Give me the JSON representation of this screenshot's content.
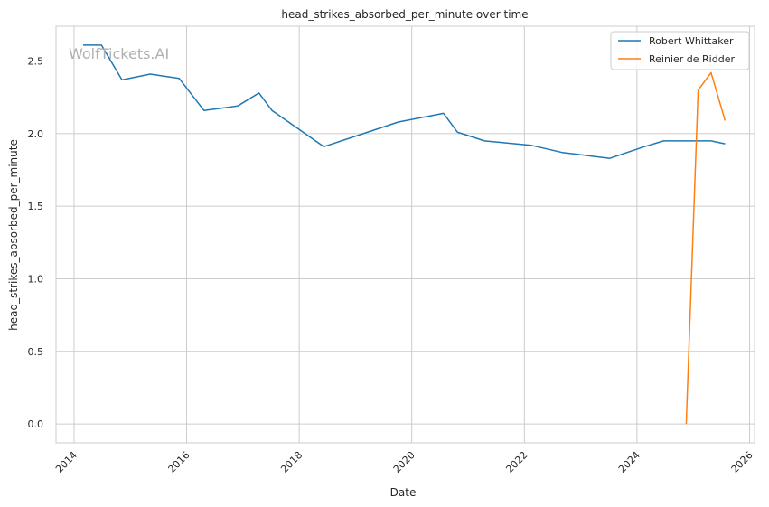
{
  "chart_data": {
    "type": "line",
    "title": "head_strikes_absorbed_per_minute over time",
    "xlabel": "Date",
    "ylabel": "head_strikes_absorbed_per_minute",
    "watermark": "WolfTickets.AI",
    "x_ticks": [
      "2014",
      "2016",
      "2018",
      "2020",
      "2022",
      "2024",
      "2026"
    ],
    "y_ticks": [
      "0.0",
      "0.5",
      "1.0",
      "1.5",
      "2.0",
      "2.5"
    ],
    "xlim": [
      "2013-09-06",
      "2026-02-02"
    ],
    "ylim": [
      -0.13,
      2.74
    ],
    "grid": true,
    "legend_position": "top-right",
    "colors": {
      "Robert Whittaker": "#1f77b4",
      "Reinier de Ridder": "#ff7f0e"
    },
    "series": [
      {
        "name": "Robert Whittaker",
        "x": [
          "2014-03-01",
          "2014-06-28",
          "2014-11-08",
          "2015-05-10",
          "2015-11-14",
          "2016-04-23",
          "2016-11-27",
          "2017-04-15",
          "2017-07-08",
          "2018-06-09",
          "2019-10-06",
          "2020-07-25",
          "2020-10-24",
          "2021-04-17",
          "2022-02-12",
          "2022-09-03",
          "2023-07-08",
          "2024-02-17",
          "2024-06-22",
          "2025-04-26",
          "2025-07-26"
        ],
        "values": [
          2.61,
          2.61,
          2.37,
          2.41,
          2.38,
          2.16,
          2.19,
          2.28,
          2.16,
          1.91,
          2.08,
          2.14,
          2.01,
          1.95,
          1.92,
          1.87,
          1.83,
          1.91,
          1.95,
          1.95,
          1.93
        ]
      },
      {
        "name": "Reinier de Ridder",
        "x": [
          "2024-11-16",
          "2025-02-01",
          "2025-04-26",
          "2025-07-26"
        ],
        "values": [
          0.0,
          2.3,
          2.42,
          2.09
        ]
      }
    ]
  }
}
